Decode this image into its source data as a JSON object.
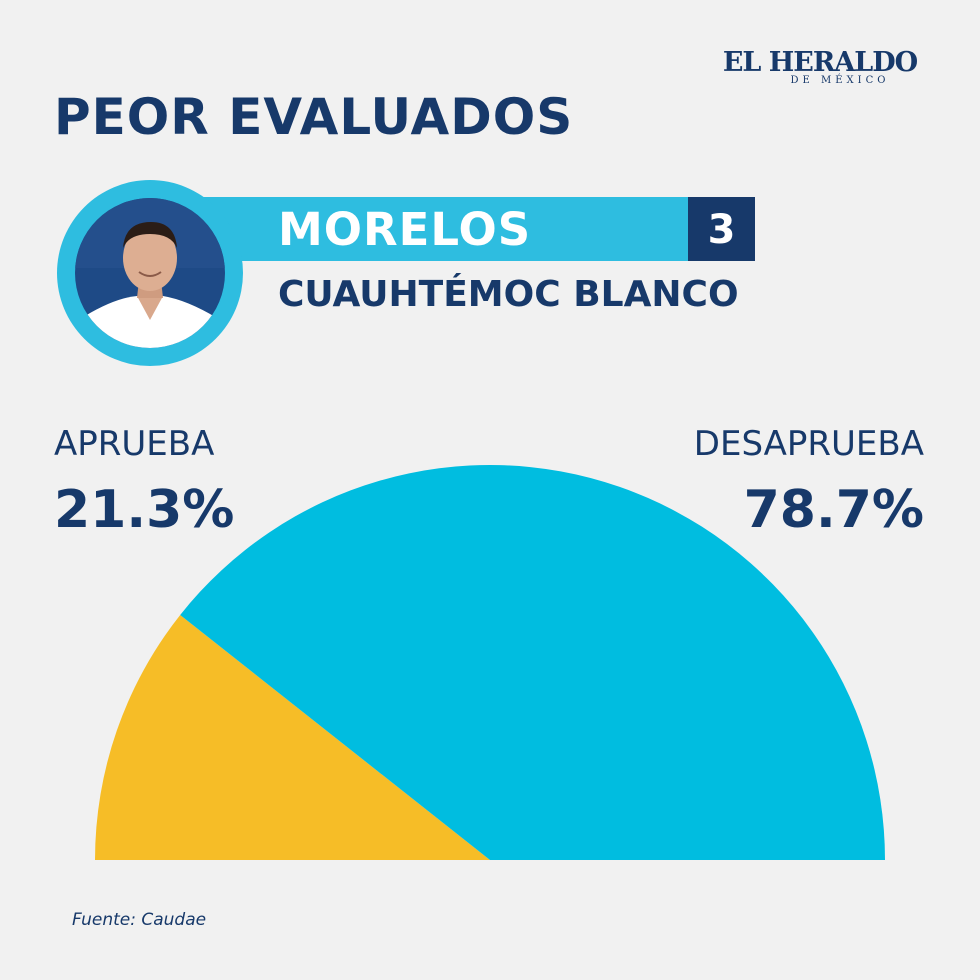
{
  "brand": {
    "name": "EL HERALDO",
    "tagline": "DE MÉXICO"
  },
  "title": "PEOR EVALUADOS",
  "profile": {
    "state": "MORELOS",
    "rank": "3",
    "name": "CUAUHTÉMOC BLANCO"
  },
  "labels": {
    "approve": "APRUEBA",
    "approve_value": "21.3%",
    "disapprove": "DESAPRUEBA",
    "disapprove_value": "78.7%"
  },
  "source": "Fuente: Caudae",
  "colors": {
    "navy": "#17396a",
    "cyan": "#2ebde0",
    "gauge_cyan": "#00bde0",
    "gauge_yellow": "#f6bd27",
    "background": "#f1f1f1"
  },
  "chart_data": {
    "type": "pie",
    "categories": [
      "APRUEBA",
      "DESAPRUEBA"
    ],
    "values": [
      21.3,
      78.7
    ],
    "units": "%",
    "shape": "semicircle",
    "colors": [
      "#f6bd27",
      "#00bde0"
    ]
  }
}
